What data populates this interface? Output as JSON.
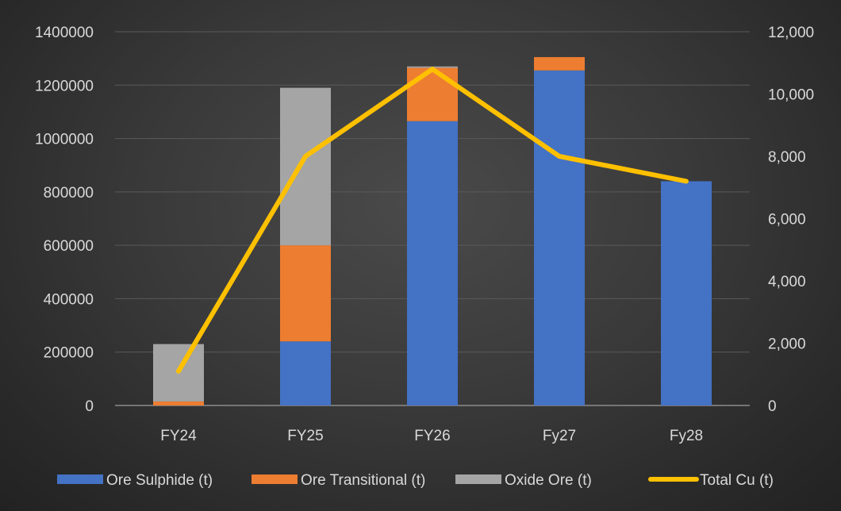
{
  "chart_data": {
    "type": "bar",
    "stacked": true,
    "categories": [
      "FY24",
      "FY25",
      "FY26",
      "Fy27",
      "Fy28"
    ],
    "series": [
      {
        "name": "Ore Sulphide (t)",
        "axis": "left",
        "color": "#4472c4",
        "values": [
          0,
          240000,
          1065000,
          1255000,
          840000
        ]
      },
      {
        "name": "Ore Transitional (t)",
        "axis": "left",
        "color": "#ed7d31",
        "values": [
          15000,
          360000,
          200000,
          50000,
          0
        ]
      },
      {
        "name": "Oxide Ore (t)",
        "axis": "left",
        "color": "#a5a5a5",
        "values": [
          215000,
          590000,
          5000,
          0,
          0
        ]
      }
    ],
    "line_series": [
      {
        "name": "Total Cu (t)",
        "axis": "right",
        "color": "#ffc000",
        "values": [
          1100,
          8000,
          10800,
          8000,
          7200
        ]
      }
    ],
    "y_left": {
      "range": [
        0,
        1400000
      ],
      "ticks": [
        "0",
        "200000",
        "400000",
        "600000",
        "800000",
        "1000000",
        "1200000",
        "1400000"
      ]
    },
    "y_right": {
      "range": [
        0,
        12000
      ],
      "ticks": [
        "0",
        "2,000",
        "4,000",
        "6,000",
        "8,000",
        "10,000",
        "12,000"
      ]
    },
    "grid": true,
    "legend_position": "bottom"
  },
  "colors": {
    "gridline": "#5a5a5a",
    "axis_line": "#8c8c8c",
    "text": "#d9d9d9"
  }
}
